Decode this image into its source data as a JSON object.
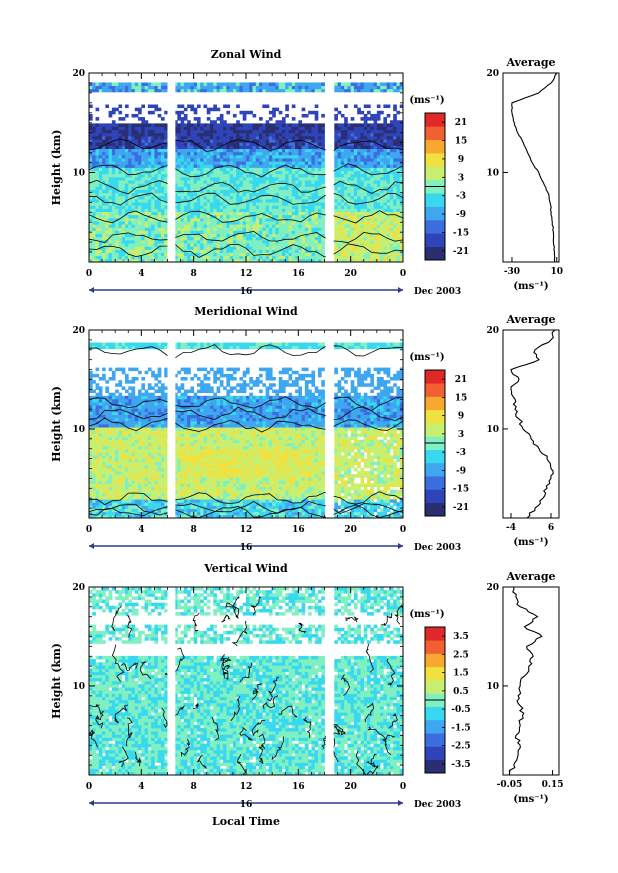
{
  "chart_data": [
    {
      "type": "heatmap",
      "title": "Zonal Wind",
      "ylabel": "Height (km)",
      "xlabel": "",
      "xlim": [
        0,
        24
      ],
      "ylim": [
        1,
        20
      ],
      "x_ticks": [
        "0",
        "4",
        "8",
        "12",
        "16",
        "20",
        "0"
      ],
      "y_ticks": [
        "20",
        "10"
      ],
      "date_day": "16",
      "date_label": "Dec 2003",
      "colorbar": {
        "unit": "(ms⁻¹)",
        "ticks": [
          "21",
          "15",
          "9",
          "3",
          "-3",
          "-9",
          "-15",
          "-21"
        ],
        "range": [
          -24,
          24
        ]
      },
      "average": {
        "title": "Average",
        "xlabel": "(ms⁻¹)",
        "x_ticks": [
          "-30",
          "10"
        ],
        "xlim": [
          -38,
          12
        ],
        "y_ticks": [
          "20",
          "10"
        ],
        "profile_heights": [
          1,
          2,
          3,
          4,
          5,
          6,
          7,
          8,
          9,
          10,
          11,
          12,
          13,
          14,
          15,
          16,
          17,
          18,
          19,
          20
        ],
        "profile_values": [
          8,
          8,
          7,
          7,
          6,
          5,
          4,
          2,
          -2,
          -6,
          -12,
          -16,
          -20,
          -25,
          -28,
          -30,
          -30,
          -6,
          5,
          10
        ]
      }
    },
    {
      "type": "heatmap",
      "title": "Meridional Wind",
      "ylabel": "Height (km)",
      "xlabel": "",
      "xlim": [
        0,
        24
      ],
      "ylim": [
        1,
        20
      ],
      "x_ticks": [
        "0",
        "4",
        "8",
        "12",
        "16",
        "20",
        "0"
      ],
      "y_ticks": [
        "20",
        "10"
      ],
      "date_day": "16",
      "date_label": "Dec 2003",
      "colorbar": {
        "unit": "(ms⁻¹)",
        "ticks": [
          "21",
          "15",
          "9",
          "3",
          "-3",
          "-9",
          "-15",
          "-21"
        ],
        "range": [
          -24,
          24
        ]
      },
      "average": {
        "title": "Average",
        "xlabel": "(ms⁻¹)",
        "x_ticks": [
          "-4",
          "6"
        ],
        "xlim": [
          -6,
          8
        ],
        "y_ticks": [
          "20",
          "10"
        ],
        "profile_heights": [
          1,
          2,
          3,
          4,
          5,
          6,
          7,
          8,
          9,
          10,
          11,
          12,
          13,
          14,
          15,
          16,
          17,
          18,
          19,
          20
        ],
        "profile_values": [
          0,
          2,
          4,
          5,
          6,
          6,
          5,
          3,
          1,
          -1,
          -2,
          -3,
          -3,
          -4,
          -2,
          -4,
          3,
          2,
          6,
          7
        ]
      }
    },
    {
      "type": "heatmap",
      "title": "Vertical Wind",
      "ylabel": "Height (km)",
      "xlabel": "Local Time",
      "xlim": [
        0,
        24
      ],
      "ylim": [
        1,
        20
      ],
      "x_ticks": [
        "0",
        "4",
        "8",
        "12",
        "16",
        "20",
        "0"
      ],
      "y_ticks": [
        "20",
        "10"
      ],
      "date_day": "16",
      "date_label": "Dec 2003",
      "colorbar": {
        "unit": "(ms⁻¹)",
        "ticks": [
          "3.5",
          "2.5",
          "1.5",
          "0.5",
          "-0.5",
          "-1.5",
          "-2.5",
          "-3.5"
        ],
        "range": [
          -4,
          4
        ]
      },
      "average": {
        "title": "Average",
        "xlabel": "(ms⁻¹)",
        "x_ticks": [
          "-0.05",
          "0.15"
        ],
        "xlim": [
          -0.08,
          0.18
        ],
        "y_ticks": [
          "20",
          "10"
        ],
        "profile_heights": [
          1,
          2,
          3,
          4,
          5,
          6,
          7,
          8,
          9,
          10,
          11,
          12,
          13,
          14,
          15,
          16,
          17,
          18,
          19,
          20
        ],
        "profile_values": [
          -0.05,
          -0.03,
          -0.01,
          0.0,
          -0.02,
          0.0,
          0.01,
          0.0,
          -0.01,
          0.0,
          0.02,
          0.04,
          0.06,
          0.03,
          0.1,
          0.02,
          0.08,
          0.0,
          -0.02,
          -0.03
        ]
      }
    }
  ],
  "colors": {
    "scale": [
      "#2a2e72",
      "#2e44b8",
      "#3c6ee0",
      "#3fa6f0",
      "#38d8f0",
      "#80f0c0",
      "#c8f070",
      "#f0e040",
      "#f8a830",
      "#f06030",
      "#e02828"
    ],
    "contour": "#000000",
    "axis": "#000000",
    "date_bar": "#2c3a8c"
  }
}
